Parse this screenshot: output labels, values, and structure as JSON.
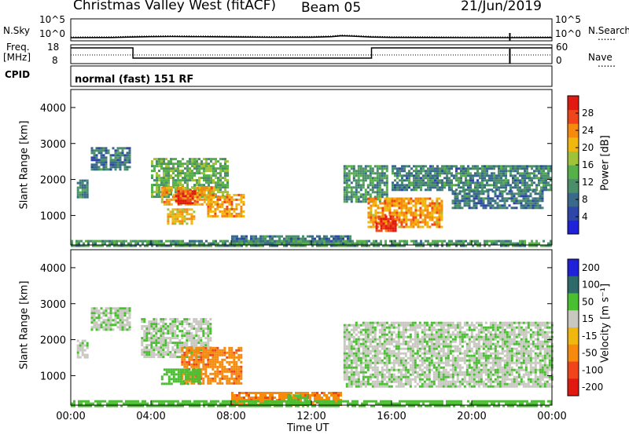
{
  "header": {
    "radar": "Christmas Valley West (fitACF)",
    "beam": "Beam 05",
    "date": "21/Jun/2019",
    "mode": "normal (fast) 151 RF"
  },
  "left_labels": {
    "nsky": "N.Sky",
    "freq1": "Freq.",
    "freq2": "[MHz]",
    "cpid": "CPID"
  },
  "right_labels": {
    "nsearch": "N.Search",
    "nave": "Nave"
  },
  "scales": {
    "noise_top": "10^5",
    "noise_bottom": "10^0",
    "freq_top": "18",
    "freq_bottom": "8",
    "nave_top": "60",
    "nave_bottom": "0"
  },
  "chart_data": [
    {
      "type": "line",
      "name": "noise",
      "x": [
        0,
        2,
        3,
        4,
        5,
        6,
        7,
        8,
        10,
        12,
        13,
        13.5,
        14,
        15,
        16,
        18,
        20,
        22,
        24
      ],
      "series": [
        {
          "name": "N.Sky",
          "values": [
            1.0,
            1.1,
            1.5,
            2.0,
            2.2,
            2.0,
            1.9,
            1.6,
            1.3,
            1.4,
            2.0,
            3.5,
            2.8,
            1.5,
            1.2,
            1.1,
            1.0,
            1.0,
            1.1
          ]
        }
      ],
      "xlim": [
        0,
        24
      ]
    },
    {
      "type": "line",
      "name": "frequency",
      "x": [
        0,
        3.1,
        3.1,
        15.0,
        15.0,
        24
      ],
      "series": [
        {
          "name": "Freq",
          "values": [
            17.0,
            17.0,
            10.5,
            10.5,
            17.0,
            17.0
          ]
        }
      ],
      "ylim": [
        8,
        18
      ]
    },
    {
      "type": "heatmap",
      "title": "Power [dB]",
      "xlabel": "Time UT",
      "ylabel": "Slant Range [km]",
      "xlim": [
        0,
        24
      ],
      "ylim": [
        180,
        4500
      ],
      "xticks": [
        "00:00",
        "04:00",
        "08:00",
        "12:00",
        "16:00",
        "20:00",
        "00:00"
      ],
      "yticks": [
        1000,
        2000,
        3000,
        4000
      ],
      "colorbar": {
        "label": "Power [dB]",
        "ticks": [
          "4",
          "8",
          "12",
          "16",
          "20",
          "24",
          "28"
        ],
        "range": [
          0,
          32
        ]
      },
      "regions": [
        {
          "t0": 0.3,
          "t1": 0.8,
          "r0": 1500,
          "r1": 2000,
          "value": 10
        },
        {
          "t0": 1.0,
          "t1": 3.0,
          "r0": 2300,
          "r1": 2900,
          "value": 9
        },
        {
          "t0": 4.0,
          "t1": 7.8,
          "r0": 1500,
          "r1": 2600,
          "value": 14
        },
        {
          "t0": 4.5,
          "t1": 7.2,
          "r0": 1300,
          "r1": 1800,
          "value": 22
        },
        {
          "t0": 5.2,
          "t1": 6.2,
          "r0": 1350,
          "r1": 1700,
          "value": 29
        },
        {
          "t0": 4.8,
          "t1": 6.2,
          "r0": 800,
          "r1": 1200,
          "value": 21
        },
        {
          "t0": 6.8,
          "t1": 8.6,
          "r0": 1000,
          "r1": 1600,
          "value": 23
        },
        {
          "t0": 8.0,
          "t1": 14.0,
          "r0": 200,
          "r1": 450,
          "value": 9
        },
        {
          "t0": 13.6,
          "t1": 15.8,
          "r0": 1400,
          "r1": 2400,
          "value": 12
        },
        {
          "t0": 14.8,
          "t1": 18.5,
          "r0": 700,
          "r1": 1500,
          "value": 23
        },
        {
          "t0": 15.2,
          "t1": 16.2,
          "r0": 600,
          "r1": 1000,
          "value": 28
        },
        {
          "t0": 16.0,
          "t1": 24.0,
          "r0": 1700,
          "r1": 2400,
          "value": 10
        },
        {
          "t0": 19.0,
          "t1": 23.5,
          "r0": 1200,
          "r1": 1700,
          "value": 9
        },
        {
          "t0": 0.0,
          "t1": 24.0,
          "r0": 180,
          "r1": 320,
          "value": 12
        }
      ]
    },
    {
      "type": "heatmap",
      "title": "Velocity [m s-1]",
      "xlabel": "Time UT",
      "ylabel": "Slant Range [km]",
      "xlim": [
        0,
        24
      ],
      "ylim": [
        180,
        4500
      ],
      "xticks": [
        "00:00",
        "04:00",
        "08:00",
        "12:00",
        "16:00",
        "20:00",
        "00:00"
      ],
      "yticks": [
        1000,
        2000,
        3000,
        4000
      ],
      "colorbar": {
        "label": "Velocity [m s⁻¹]",
        "ticks": [
          "200",
          "100",
          "50",
          "15",
          "-15",
          "-50",
          "-100",
          "-200"
        ]
      },
      "regions": [
        {
          "t0": 0.3,
          "t1": 0.8,
          "r0": 1500,
          "r1": 2000,
          "value": 0
        },
        {
          "t0": 1.0,
          "t1": 3.0,
          "r0": 2300,
          "r1": 2900,
          "value": 0
        },
        {
          "t0": 3.5,
          "t1": 7.0,
          "r0": 1500,
          "r1": 2600,
          "value": 0
        },
        {
          "t0": 5.5,
          "t1": 8.5,
          "r0": 800,
          "r1": 1800,
          "value": -70
        },
        {
          "t0": 4.5,
          "t1": 6.5,
          "r0": 800,
          "r1": 1200,
          "value": 30
        },
        {
          "t0": 8.0,
          "t1": 13.5,
          "r0": 200,
          "r1": 550,
          "value": -70
        },
        {
          "t0": 10.8,
          "t1": 11.8,
          "r0": 250,
          "r1": 480,
          "value": 30
        },
        {
          "t0": 13.6,
          "t1": 24.0,
          "r0": 700,
          "r1": 2500,
          "value": 0
        },
        {
          "t0": 0.0,
          "t1": 24.0,
          "r0": 180,
          "r1": 320,
          "value": 30
        }
      ]
    }
  ],
  "colors": {
    "power": [
      "#1f22d8",
      "#2e46a8",
      "#3a6a8a",
      "#4b8f6a",
      "#56b04a",
      "#a0c23a",
      "#f0b80e",
      "#f58a0c",
      "#f0451a",
      "#e01a10"
    ],
    "velocity": {
      "200": "#1f22d8",
      "100": "#2e6a6a",
      "50": "#4bbf32",
      "15": "#c8c8c0",
      "-15": "#f0b80e",
      "-50": "#f58a0c",
      "-100": "#f0451a",
      "-200": "#e01a10"
    }
  }
}
